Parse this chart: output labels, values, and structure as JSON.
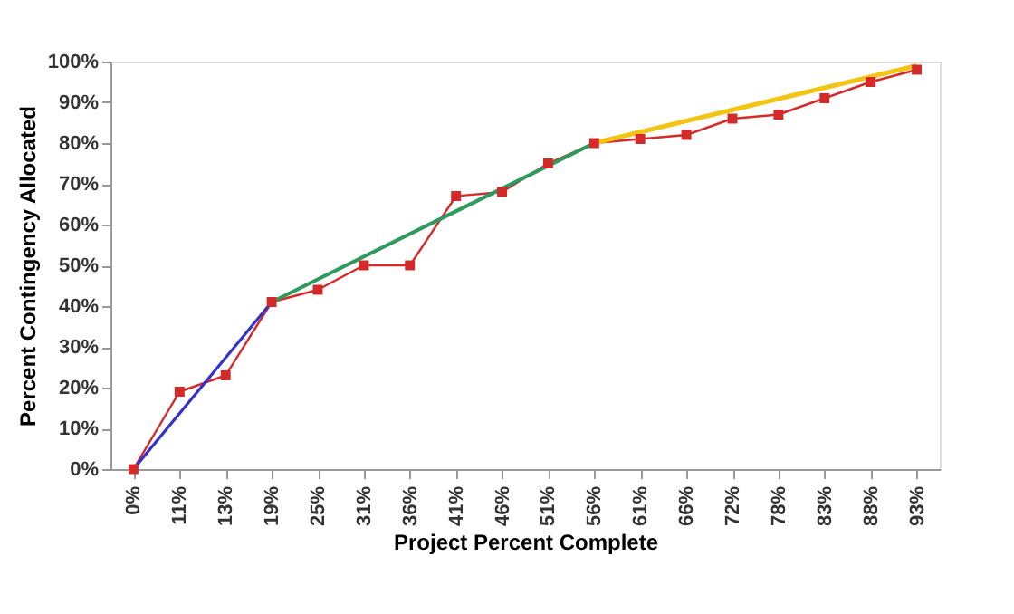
{
  "chart_data": {
    "type": "line",
    "xlabel": "Project Percent Complete",
    "ylabel": "Percent Contingency Allocated",
    "categories": [
      "0%",
      "11%",
      "13%",
      "19%",
      "25%",
      "31%",
      "36%",
      "41%",
      "46%",
      "51%",
      "56%",
      "61%",
      "66%",
      "72%",
      "78%",
      "83%",
      "88%",
      "93%"
    ],
    "series": [
      {
        "color": "#d42a2a",
        "marker": "square",
        "values": [
          0,
          19,
          23,
          41,
          44,
          50,
          50,
          67,
          68,
          75,
          80,
          81,
          82,
          86,
          87,
          91,
          95,
          98
        ]
      },
      {
        "color": "#3333cc",
        "marker": "none",
        "x": [
          "0%",
          "19%"
        ],
        "values": [
          0,
          41
        ]
      },
      {
        "color": "#2e9a5e",
        "marker": "none",
        "x": [
          "19%",
          "56%"
        ],
        "values": [
          41,
          80
        ]
      },
      {
        "color": "#f2c514",
        "marker": "none",
        "x": [
          "56%",
          "93%"
        ],
        "values": [
          80,
          99
        ]
      }
    ],
    "ylim": [
      0,
      100
    ],
    "yticks": [
      {
        "value": 0,
        "label": "0%"
      },
      {
        "value": 10,
        "label": "10%"
      },
      {
        "value": 20,
        "label": "20%"
      },
      {
        "value": 30,
        "label": "30%"
      },
      {
        "value": 40,
        "label": "40%"
      },
      {
        "value": 50,
        "label": "50%"
      },
      {
        "value": 60,
        "label": "60%"
      },
      {
        "value": 70,
        "label": "70%"
      },
      {
        "value": 80,
        "label": "80%"
      },
      {
        "value": 90,
        "label": "90%"
      },
      {
        "value": 100,
        "label": "100%"
      }
    ],
    "grid": false,
    "legend": false,
    "line_style": "solid"
  }
}
